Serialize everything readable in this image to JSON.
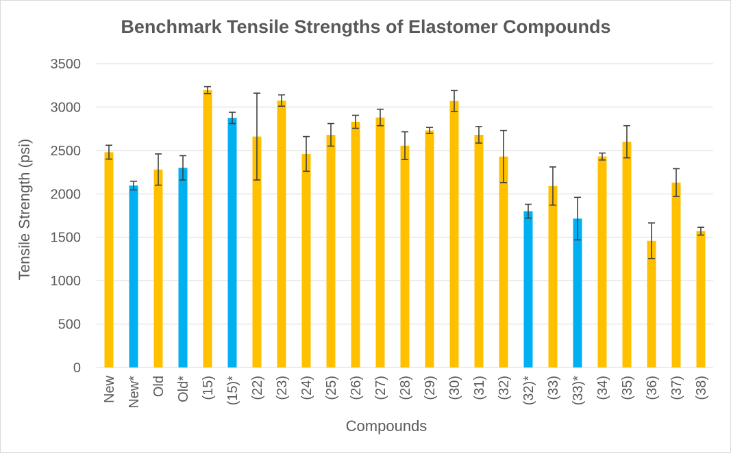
{
  "chart_data": {
    "type": "bar",
    "title": "Benchmark Tensile Strengths of Elastomer Compounds",
    "xlabel": "Compounds",
    "ylabel": "Tensile Strength (psi)",
    "ylim": [
      0,
      3500
    ],
    "yticks": [
      0,
      500,
      1000,
      1500,
      2000,
      2500,
      3000,
      3500
    ],
    "grid": true,
    "legend": "none",
    "colors": {
      "standard": "#FFC000",
      "starred": "#00B0F0",
      "error_bar": "#404040",
      "grid": "#d9d9d9",
      "title": "#595959",
      "text": "#595959"
    },
    "categories": [
      "New",
      "New*",
      "Old",
      "Old*",
      "(15)",
      "(15)*",
      "(22)",
      "(23)",
      "(24)",
      "(25)",
      "(26)",
      "(27)",
      "(28)",
      "(29)",
      "(30)",
      "(31)",
      "(32)",
      "(32)*",
      "(33)",
      "(33)*",
      "(34)",
      "(35)",
      "(36)",
      "(37)",
      "(38)"
    ],
    "values": [
      2480,
      2095,
      2280,
      2300,
      3195,
      2875,
      2660,
      3075,
      2460,
      2680,
      2830,
      2880,
      2555,
      2730,
      3070,
      2680,
      2430,
      1800,
      2090,
      1715,
      2430,
      2600,
      1460,
      2130,
      1570
    ],
    "errors": [
      80,
      50,
      180,
      140,
      40,
      65,
      500,
      65,
      200,
      130,
      75,
      95,
      160,
      35,
      120,
      95,
      300,
      80,
      220,
      245,
      40,
      185,
      205,
      160,
      45
    ],
    "bar_color_keys": [
      "standard",
      "starred",
      "standard",
      "starred",
      "standard",
      "starred",
      "standard",
      "standard",
      "standard",
      "standard",
      "standard",
      "standard",
      "standard",
      "standard",
      "standard",
      "standard",
      "standard",
      "starred",
      "standard",
      "starred",
      "standard",
      "standard",
      "standard",
      "standard",
      "standard"
    ]
  }
}
